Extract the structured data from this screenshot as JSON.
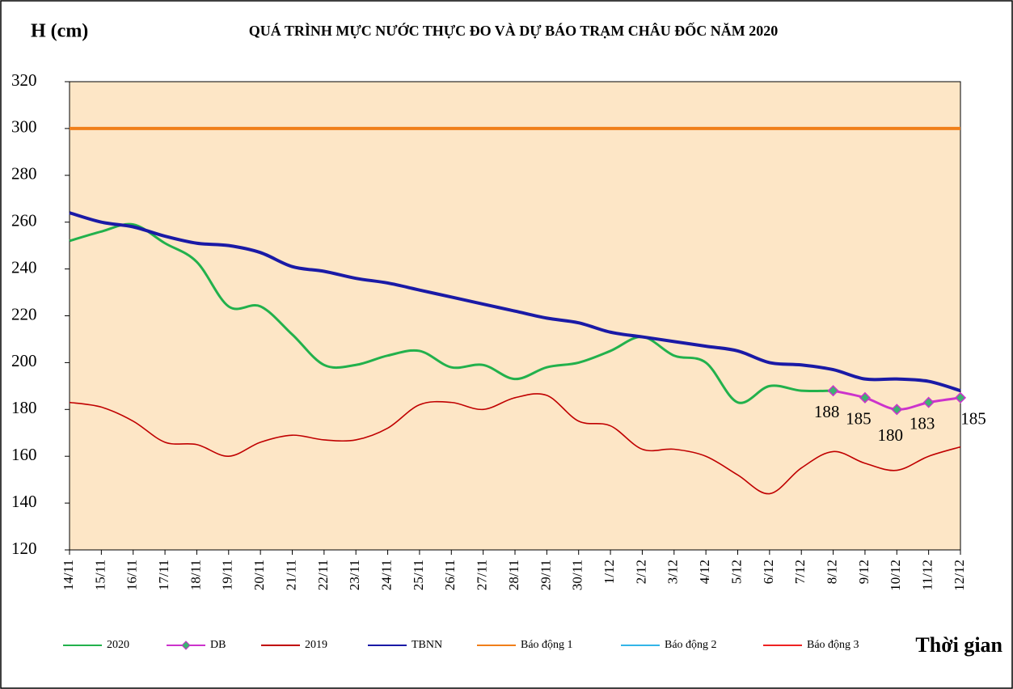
{
  "chart_data": {
    "type": "line",
    "title": "QUÁ TRÌNH MỰC NƯỚC THỰC ĐO VÀ DỰ BÁO TRẠM CHÂU ĐỐC NĂM 2020",
    "y_label": "H (cm)",
    "x_label": "Thời gian",
    "categories": [
      "14/11",
      "15/11",
      "16/11",
      "17/11",
      "18/11",
      "19/11",
      "20/11",
      "21/11",
      "22/11",
      "23/11",
      "24/11",
      "25/11",
      "26/11",
      "27/11",
      "28/11",
      "29/11",
      "30/11",
      "1/12",
      "2/12",
      "3/12",
      "4/12",
      "5/12",
      "6/12",
      "7/12",
      "8/12",
      "9/12",
      "10/12",
      "11/12",
      "12/12"
    ],
    "series": [
      {
        "name": "2020",
        "color": "#22b14c",
        "values": [
          252,
          256,
          259,
          251,
          243,
          224,
          224,
          212,
          199,
          199,
          203,
          205,
          198,
          199,
          193,
          198,
          200,
          205,
          211,
          203,
          200,
          183,
          190,
          188,
          188,
          null,
          null,
          null,
          null
        ]
      },
      {
        "name": "DB",
        "color": "#cc33cc",
        "marker": "diamond",
        "values": [
          null,
          null,
          null,
          null,
          null,
          null,
          null,
          null,
          null,
          null,
          null,
          null,
          null,
          null,
          null,
          null,
          null,
          null,
          null,
          null,
          null,
          null,
          null,
          null,
          188,
          185,
          180,
          183,
          185
        ]
      },
      {
        "name": "2019",
        "color": "#c00000",
        "values": [
          183,
          181,
          175,
          166,
          165,
          160,
          166,
          169,
          167,
          167,
          172,
          182,
          183,
          180,
          185,
          186,
          175,
          173,
          163,
          163,
          160,
          152,
          144,
          155,
          162,
          157,
          154,
          160,
          164
        ]
      },
      {
        "name": "TBNN",
        "color": "#1a1aa6",
        "values": [
          264,
          260,
          258,
          254,
          251,
          250,
          247,
          241,
          239,
          236,
          234,
          231,
          228,
          225,
          222,
          219,
          217,
          213,
          211,
          209,
          207,
          205,
          200,
          199,
          197,
          193,
          193,
          192,
          188
        ]
      },
      {
        "name": "Báo động 1",
        "color": "#f07f1a",
        "values": [
          300,
          300,
          300,
          300,
          300,
          300,
          300,
          300,
          300,
          300,
          300,
          300,
          300,
          300,
          300,
          300,
          300,
          300,
          300,
          300,
          300,
          300,
          300,
          300,
          300,
          300,
          300,
          300,
          300
        ]
      },
      {
        "name": "Báo động 2",
        "color": "#33b5e8"
      },
      {
        "name": "Báo động 3",
        "color": "#ee2222"
      }
    ],
    "ylim": [
      120,
      320
    ],
    "yticks": [
      120,
      140,
      160,
      180,
      200,
      220,
      240,
      260,
      280,
      300,
      320
    ],
    "plot_background": "#fde6c6",
    "grid": false
  }
}
